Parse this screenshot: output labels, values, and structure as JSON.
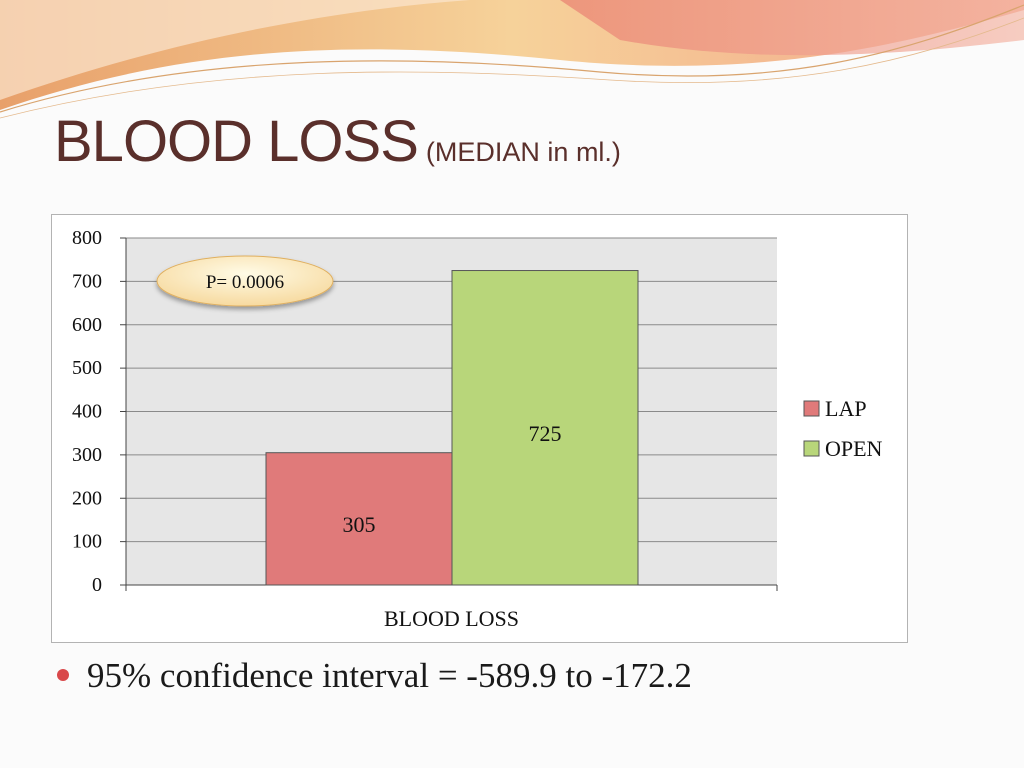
{
  "title": {
    "main": "BLOOD LOSS",
    "sub": "(MEDIAN in ml.)"
  },
  "colors": {
    "title": "#5a2f2b",
    "lap": "#e07a7a",
    "open": "#b8d67a",
    "bullet": "#d9484a"
  },
  "annotation": {
    "text": "P= 0.0006"
  },
  "bullet": {
    "text": "95% confidence interval = -589.9 to -172.2"
  },
  "chart_data": {
    "type": "bar",
    "categories": [
      "BLOOD LOSS"
    ],
    "series": [
      {
        "name": "LAP",
        "values": [
          305
        ]
      },
      {
        "name": "OPEN",
        "values": [
          725
        ]
      }
    ],
    "data_labels": [
      "305",
      "725"
    ],
    "yticks": [
      "0",
      "100",
      "200",
      "300",
      "400",
      "500",
      "600",
      "700",
      "800"
    ],
    "ylim": [
      0,
      800
    ],
    "grid": true,
    "legend": "right"
  }
}
